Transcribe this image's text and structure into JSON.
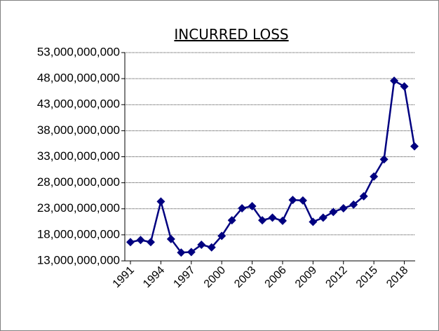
{
  "chart_data": {
    "type": "line",
    "title": "INCURRED LOSS",
    "x": [
      1991,
      1992,
      1993,
      1994,
      1995,
      1996,
      1997,
      1998,
      1999,
      2000,
      2001,
      2002,
      2003,
      2004,
      2005,
      2006,
      2007,
      2008,
      2009,
      2010,
      2011,
      2012,
      2013,
      2014,
      2015,
      2016,
      2017,
      2018,
      2019
    ],
    "series": [
      {
        "color": "#000080",
        "values": [
          16600000000,
          17000000000,
          16600000000,
          24400000000,
          17200000000,
          14600000000,
          14700000000,
          16100000000,
          15600000000,
          17800000000,
          20800000000,
          23100000000,
          23500000000,
          20800000000,
          21300000000,
          20700000000,
          24700000000,
          24600000000,
          20500000000,
          21300000000,
          22400000000,
          23100000000,
          23800000000,
          25400000000,
          29200000000,
          32500000000,
          47600000000,
          46500000000,
          35000000000
        ]
      }
    ],
    "xlim": [
      1991,
      2019
    ],
    "xticks": [
      1991,
      1994,
      1997,
      2000,
      2003,
      2006,
      2009,
      2012,
      2015,
      2018
    ],
    "ylim": [
      13000000000,
      53000000000
    ],
    "yticks": [
      {
        "value": 13000000000,
        "label": "13,000,000,000"
      },
      {
        "value": 18000000000,
        "label": "18,000,000,000"
      },
      {
        "value": 23000000000,
        "label": "23,000,000,000"
      },
      {
        "value": 28000000000,
        "label": "28,000,000,000"
      },
      {
        "value": 33000000000,
        "label": "33,000,000,000"
      },
      {
        "value": 38000000000,
        "label": "38,000,000,000"
      },
      {
        "value": 43000000000,
        "label": "43,000,000,000"
      },
      {
        "value": 48000000000,
        "label": "48,000,000,000"
      },
      {
        "value": 53000000000,
        "label": "53,000,000,000"
      }
    ],
    "grid": true
  }
}
